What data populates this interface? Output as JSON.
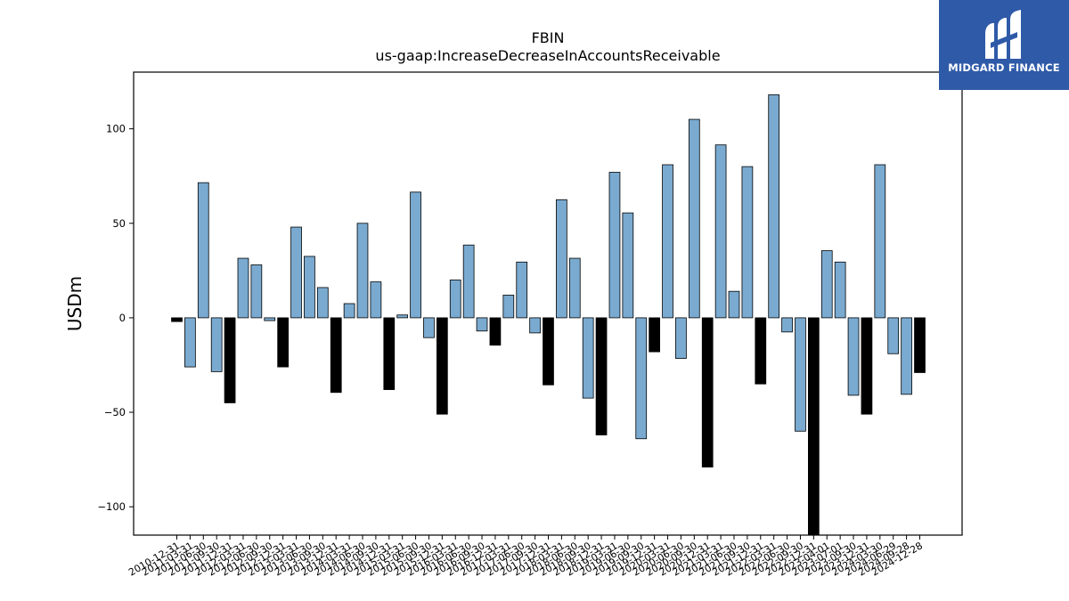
{
  "chart_data": {
    "type": "bar",
    "title": "FBIN",
    "subtitle": "us-gaap:IncreaseDecreaseInAccountsReceivable",
    "xlabel": "",
    "ylabel": "USDm",
    "ylim": [
      -115,
      130
    ],
    "yticks": [
      -100,
      -50,
      0,
      50,
      100
    ],
    "grid": false,
    "colors": {
      "positive": "#7aaad0",
      "negative_q4": "#000000",
      "edge": "#000000"
    },
    "categories": [
      "2010-12-31",
      "2011-03-31",
      "2011-06-30",
      "2011-09-30",
      "2011-12-31",
      "2012-03-31",
      "2012-06-30",
      "2012-09-30",
      "2012-12-31",
      "2013-03-31",
      "2013-06-30",
      "2013-09-30",
      "2013-12-31",
      "2014-03-31",
      "2014-06-30",
      "2014-09-30",
      "2014-12-31",
      "2015-03-31",
      "2015-06-30",
      "2015-09-30",
      "2015-12-31",
      "2016-03-31",
      "2016-06-30",
      "2016-09-30",
      "2016-12-31",
      "2017-03-31",
      "2017-06-30",
      "2017-09-30",
      "2017-12-31",
      "2018-03-31",
      "2018-06-30",
      "2018-09-30",
      "2018-12-31",
      "2019-03-31",
      "2019-06-30",
      "2019-09-30",
      "2019-12-31",
      "2020-03-31",
      "2020-06-30",
      "2020-09-30",
      "2020-12-31",
      "2021-03-31",
      "2021-06-30",
      "2021-09-30",
      "2021-12-31",
      "2022-03-31",
      "2022-06-30",
      "2022-09-30",
      "2022-12-31",
      "2023-04-01",
      "2023-07-01",
      "2023-09-30",
      "2023-12-31",
      "2024-03-30",
      "2024-06-29",
      "2024-09-28",
      "2024-12-28"
    ],
    "values": [
      -2,
      -26,
      71.5,
      -28.5,
      -45,
      31.5,
      28,
      -1.5,
      -26,
      48,
      32.5,
      16,
      -39.5,
      7.5,
      50,
      19,
      -38,
      1.5,
      66.5,
      -10.5,
      -51,
      20,
      38.5,
      -7,
      -14.5,
      12,
      29.5,
      -8,
      -35.5,
      62.5,
      31.5,
      -42.5,
      -62,
      77,
      55.5,
      -64,
      -18,
      81,
      -21.5,
      105,
      -79,
      91.5,
      14,
      80,
      -35,
      118,
      -7.5,
      -60,
      -115,
      35.5,
      29.5,
      -41,
      -51,
      81,
      -19,
      -40.5,
      -29
    ]
  }
}
